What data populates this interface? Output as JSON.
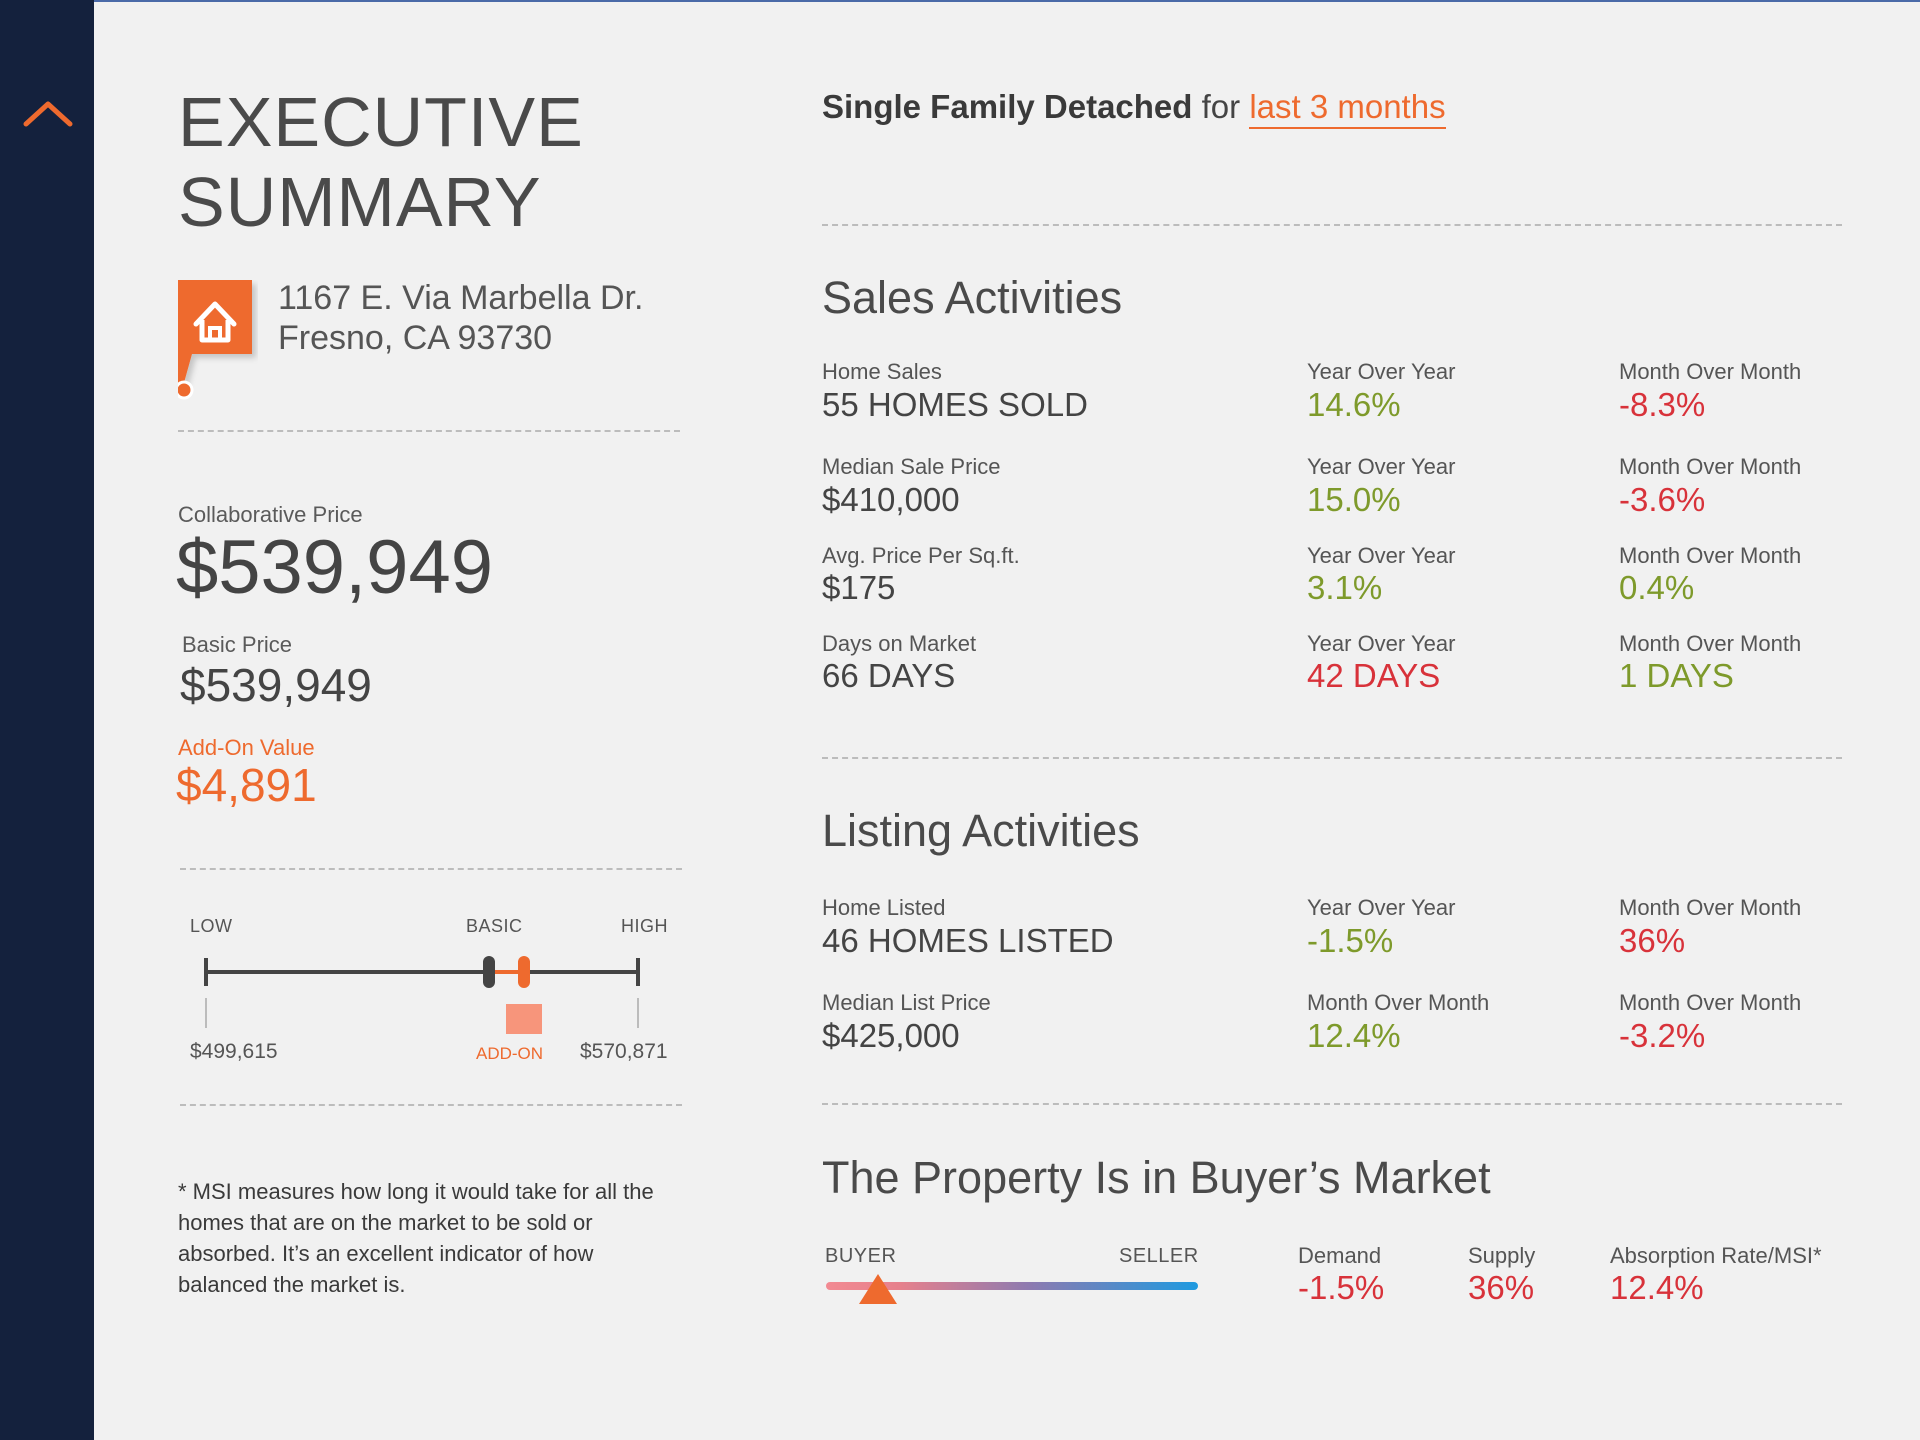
{
  "sidebar": {
    "collapse_icon": "chevron-up-icon"
  },
  "title_lines": [
    "EXECUTIVE",
    "SUMMARY"
  ],
  "property": {
    "address_line1": "1167 E. Via Marbella Dr.",
    "address_line2": "Fresno, CA 93730",
    "icon": "house-pin-icon"
  },
  "pricing": {
    "collaborative_label": "Collaborative Price",
    "collaborative_value": "$539,949",
    "basic_label": "Basic Price",
    "basic_value": "$539,949",
    "addon_label": "Add-On Value",
    "addon_value": "$4,891"
  },
  "range": {
    "low_label": "LOW",
    "basic_label": "BASIC",
    "high_label": "HIGH",
    "low_value": "$499,615",
    "addon_label": "ADD-ON",
    "high_value": "$570,871"
  },
  "note": "* MSI measures how long it would take for all the homes that are on the market to be sold or absorbed. It’s an excellent indicator of how balanced the market is.",
  "filter": {
    "property_type": "Single Family Detached",
    "connector": "for",
    "period": "last 3 months"
  },
  "sales": {
    "title": "Sales Activities",
    "rows": [
      {
        "label": "Home Sales",
        "value": "55 HOMES SOLD",
        "c1_label": "Year Over Year",
        "c1_value": "14.6%",
        "c2_label": "Month Over Month",
        "c2_value": "-8.3%"
      },
      {
        "label": "Median Sale Price",
        "value": "$410,000",
        "c1_label": "Year Over Year",
        "c1_value": "15.0%",
        "c2_label": "Month Over Month",
        "c2_value": "-3.6%"
      },
      {
        "label": "Avg. Price Per Sq.ft.",
        "value": "$175",
        "c1_label": "Year Over Year",
        "c1_value": "3.1%",
        "c2_label": "Month Over Month",
        "c2_value": "0.4%"
      },
      {
        "label": "Days on Market",
        "value": "66 DAYS",
        "c1_label": "Year Over Year",
        "c1_value": "42 DAYS",
        "c2_label": "Month Over Month",
        "c2_value": "1 DAYS"
      }
    ]
  },
  "listing": {
    "title": "Listing Activities",
    "rows": [
      {
        "label": "Home Listed",
        "value": "46 HOMES LISTED",
        "c1_label": "Year Over Year",
        "c1_value": "-1.5%",
        "c2_label": "Month Over Month",
        "c2_value": "36%"
      },
      {
        "label": "Median List Price",
        "value": "$425,000",
        "c1_label": "Month Over Month",
        "c1_value": "12.4%",
        "c2_label": "Month Over Month",
        "c2_value": "-3.2%"
      }
    ]
  },
  "market": {
    "title": "The Property Is in Buyer’s Market",
    "buyer_label": "BUYER",
    "seller_label": "SELLER",
    "position_fraction": 0.14,
    "demand_label": "Demand",
    "demand_value": "-1.5%",
    "supply_label": "Supply",
    "supply_value": "36%",
    "absorption_label": "Absorption Rate/MSI*",
    "absorption_value": "12.4%"
  },
  "colors": {
    "sidebar": "#14213d",
    "accent": "#ee6a2e",
    "positive": "#7e9a2b",
    "negative": "#d8323a"
  }
}
